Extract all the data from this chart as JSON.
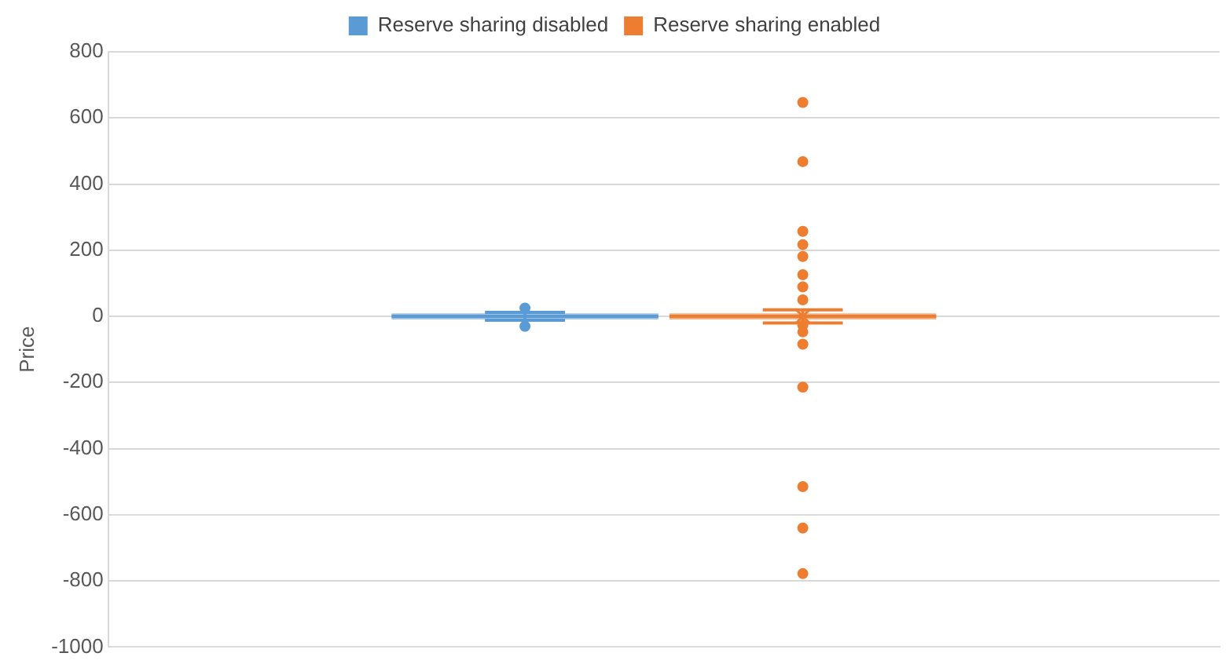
{
  "chart_data": {
    "type": "box",
    "ylabel": "Price",
    "categories": [
      null
    ],
    "ylim": [
      -1000,
      800
    ],
    "yticks": [
      -1000,
      -800,
      -600,
      -400,
      -200,
      0,
      200,
      400,
      600,
      800
    ],
    "grid": "y",
    "legend": "top",
    "series": [
      {
        "name": "Reserve sharing disabled",
        "color": "#5b9bd5",
        "boxes": [
          {
            "low": -12,
            "q1": -2,
            "median": 0,
            "q3": 2,
            "high": 12,
            "outliers": [
              25,
              -30
            ]
          }
        ]
      },
      {
        "name": "Reserve sharing enabled",
        "color": "#ed7d31",
        "boxes": [
          {
            "low": -20,
            "q1": -2,
            "median": 0,
            "q3": 2,
            "high": 20,
            "mean": 0,
            "outliers": [
              647,
              468,
              257,
              217,
              181,
              126,
              89,
              50,
              -27,
              -47,
              -84,
              -214,
              -515,
              -640,
              -778
            ]
          }
        ]
      }
    ]
  }
}
